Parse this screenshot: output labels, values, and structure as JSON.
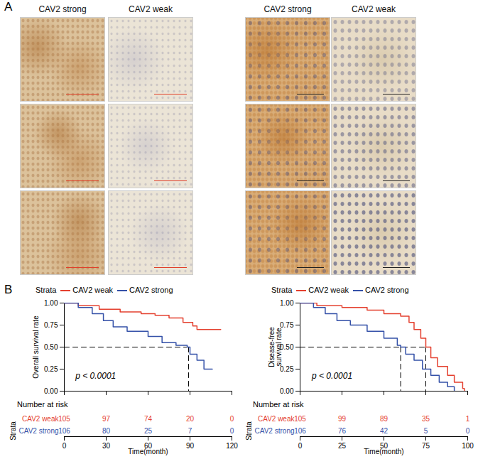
{
  "panel_a": {
    "label": "A",
    "columns": [
      "CAV2 strong",
      "CAV2 weak",
      "CAV2 strong",
      "CAV2 weak"
    ]
  },
  "panel_b": {
    "label": "B"
  },
  "chart_data": [
    {
      "type": "line",
      "line_style": "step",
      "legend": "top",
      "legend_title": "Strata",
      "y_label": "Overall survival rate",
      "x_label": "Time(month)",
      "tick_labels": "y",
      "xlim": [
        0,
        120
      ],
      "xticks": [
        0,
        30,
        60,
        90,
        120
      ],
      "ylim": [
        0,
        1
      ],
      "yticks": [
        {
          "value": 0,
          "label": "0.00"
        },
        {
          "value": 0.25,
          "label": "0.25"
        },
        {
          "value": 0.5,
          "label": "0.50"
        },
        {
          "value": 0.75,
          "label": "0.75"
        },
        {
          "value": 1,
          "label": "1.00"
        }
      ],
      "annotations": [
        {
          "text": "p < 0.0001",
          "x": 8,
          "y": 0.17
        }
      ],
      "median_lines": {
        "y": 0.5,
        "x": [
          89
        ]
      },
      "series": [
        {
          "name": "CAV2 weak",
          "color": "#e4402f",
          "x": [
            0,
            10,
            25,
            40,
            55,
            65,
            75,
            85,
            92,
            95,
            112
          ],
          "values": [
            1.0,
            0.97,
            0.93,
            0.9,
            0.88,
            0.86,
            0.83,
            0.78,
            0.74,
            0.7,
            0.7
          ]
        },
        {
          "name": "CAV2 strong",
          "color": "#3451a8",
          "x": [
            0,
            10,
            20,
            28,
            35,
            45,
            60,
            70,
            80,
            88,
            90,
            95,
            100,
            106
          ],
          "values": [
            1.0,
            0.95,
            0.88,
            0.8,
            0.73,
            0.68,
            0.62,
            0.55,
            0.52,
            0.5,
            0.42,
            0.35,
            0.25,
            0.25
          ]
        }
      ],
      "risk_table": {
        "title": "Number at risk",
        "row_title": "Strata",
        "x": [
          0,
          30,
          60,
          90,
          120
        ],
        "rows": [
          {
            "name": "CAV2 weak",
            "color": "#e4402f",
            "values": [
              105,
              97,
              74,
              20,
              0
            ]
          },
          {
            "name": "CAV2 strong",
            "color": "#3451a8",
            "values": [
              106,
              80,
              25,
              7,
              0
            ]
          }
        ]
      }
    },
    {
      "type": "line",
      "line_style": "step",
      "legend": "top",
      "legend_title": "Strata",
      "y_label": "Disease-free\nsurvival rate",
      "x_label": "Time(month)",
      "tick_labels": "y",
      "xlim": [
        0,
        100
      ],
      "xticks": [
        0,
        25,
        50,
        75,
        100
      ],
      "ylim": [
        0,
        1
      ],
      "yticks": [
        {
          "value": 0,
          "label": "0.00"
        },
        {
          "value": 0.25,
          "label": "0.25"
        },
        {
          "value": 0.5,
          "label": "0.50"
        },
        {
          "value": 0.75,
          "label": "0.75"
        },
        {
          "value": 1,
          "label": "1.00"
        }
      ],
      "annotations": [
        {
          "text": "p < 0.0001",
          "x": 7,
          "y": 0.17
        }
      ],
      "median_lines": {
        "y": 0.5,
        "x": [
          60,
          75
        ]
      },
      "series": [
        {
          "name": "CAV2 weak",
          "color": "#e4402f",
          "x": [
            0,
            10,
            25,
            40,
            50,
            60,
            65,
            68,
            72,
            75,
            78,
            82,
            88,
            92,
            97,
            98
          ],
          "values": [
            1.0,
            0.97,
            0.95,
            0.92,
            0.88,
            0.85,
            0.78,
            0.7,
            0.6,
            0.5,
            0.38,
            0.28,
            0.18,
            0.1,
            0.03,
            0.0
          ]
        },
        {
          "name": "CAV2 strong",
          "color": "#3451a8",
          "x": [
            0,
            8,
            15,
            22,
            30,
            40,
            50,
            58,
            60,
            63,
            68,
            73,
            78,
            83,
            88,
            92
          ],
          "values": [
            1.0,
            0.95,
            0.88,
            0.8,
            0.75,
            0.68,
            0.6,
            0.52,
            0.5,
            0.42,
            0.35,
            0.25,
            0.18,
            0.1,
            0.05,
            0.0
          ]
        }
      ],
      "risk_table": {
        "title": "Number at risk",
        "row_title": "Strata",
        "x": [
          0,
          25,
          50,
          75,
          100
        ],
        "rows": [
          {
            "name": "CAV2 weak",
            "color": "#e4402f",
            "values": [
              105,
              99,
              89,
              35,
              1
            ]
          },
          {
            "name": "CAV2 strong",
            "color": "#3451a8",
            "values": [
              106,
              76,
              42,
              5,
              0
            ]
          }
        ]
      }
    }
  ]
}
